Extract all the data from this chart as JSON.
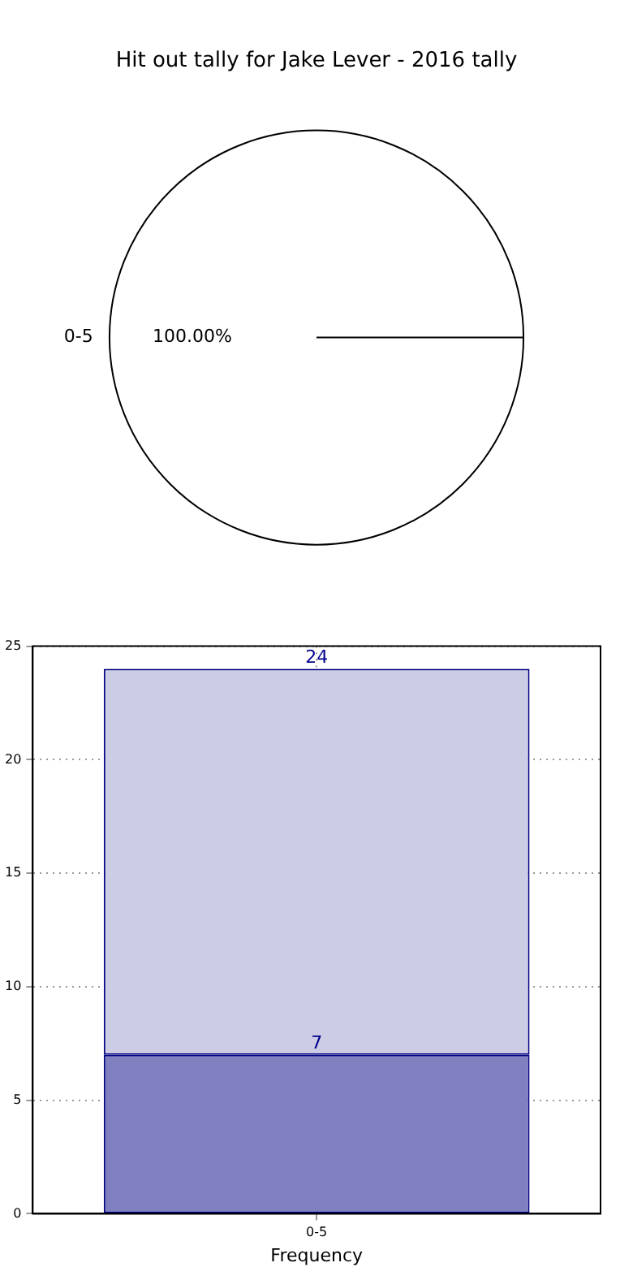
{
  "chart_data": [
    {
      "type": "pie",
      "title": "Hit out tally for Jake Lever - 2016 tally",
      "categories": [
        "0-5"
      ],
      "values": [
        100
      ],
      "colors": [
        "#ffffff"
      ],
      "value_labels": [
        "100.00%"
      ]
    },
    {
      "type": "bar",
      "xlabel": "Frequency",
      "categories": [
        "0-5"
      ],
      "series": [
        {
          "color": "#8080c0",
          "values": [
            7
          ],
          "value_labels": [
            "7"
          ]
        },
        {
          "color": "#cccce5",
          "values": [
            17
          ]
        }
      ],
      "stacked": true,
      "totals": [
        "24"
      ],
      "ylim": [
        0,
        25
      ],
      "yticks": [
        0,
        5,
        10,
        15,
        20,
        25
      ],
      "grid": true
    }
  ]
}
